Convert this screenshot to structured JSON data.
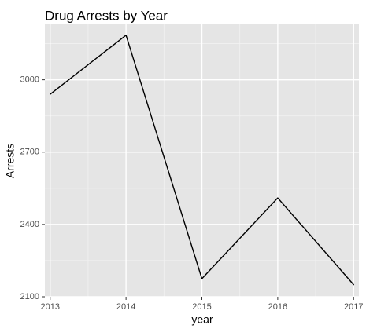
{
  "chart_data": {
    "type": "line",
    "title": "Drug Arrests by Year",
    "xlabel": "year",
    "ylabel": "Arrests",
    "x": [
      2013,
      2014,
      2015,
      2016,
      2017
    ],
    "series": [
      {
        "values": [
          2940,
          3185,
          2175,
          2510,
          2150
        ]
      }
    ],
    "xlim": [
      2012.93,
      2017.07
    ],
    "ylim": [
      2100,
      3230
    ],
    "x_ticks": [
      2013,
      2014,
      2015,
      2016,
      2017
    ],
    "x_tick_labels": [
      "2013",
      "2014",
      "2015",
      "2016",
      "2017"
    ],
    "y_ticks": [
      2100,
      2400,
      2700,
      3000
    ],
    "y_tick_labels": [
      "2100",
      "2400",
      "2700",
      "3000"
    ],
    "grid": true,
    "panel_background": "#e5e5e5",
    "grid_major_color": "#ffffff",
    "grid_minor_color": "#f2f2f2",
    "line_color": "#000000",
    "tick_label_color": "#4d4d4d",
    "text_color": "#000000"
  }
}
